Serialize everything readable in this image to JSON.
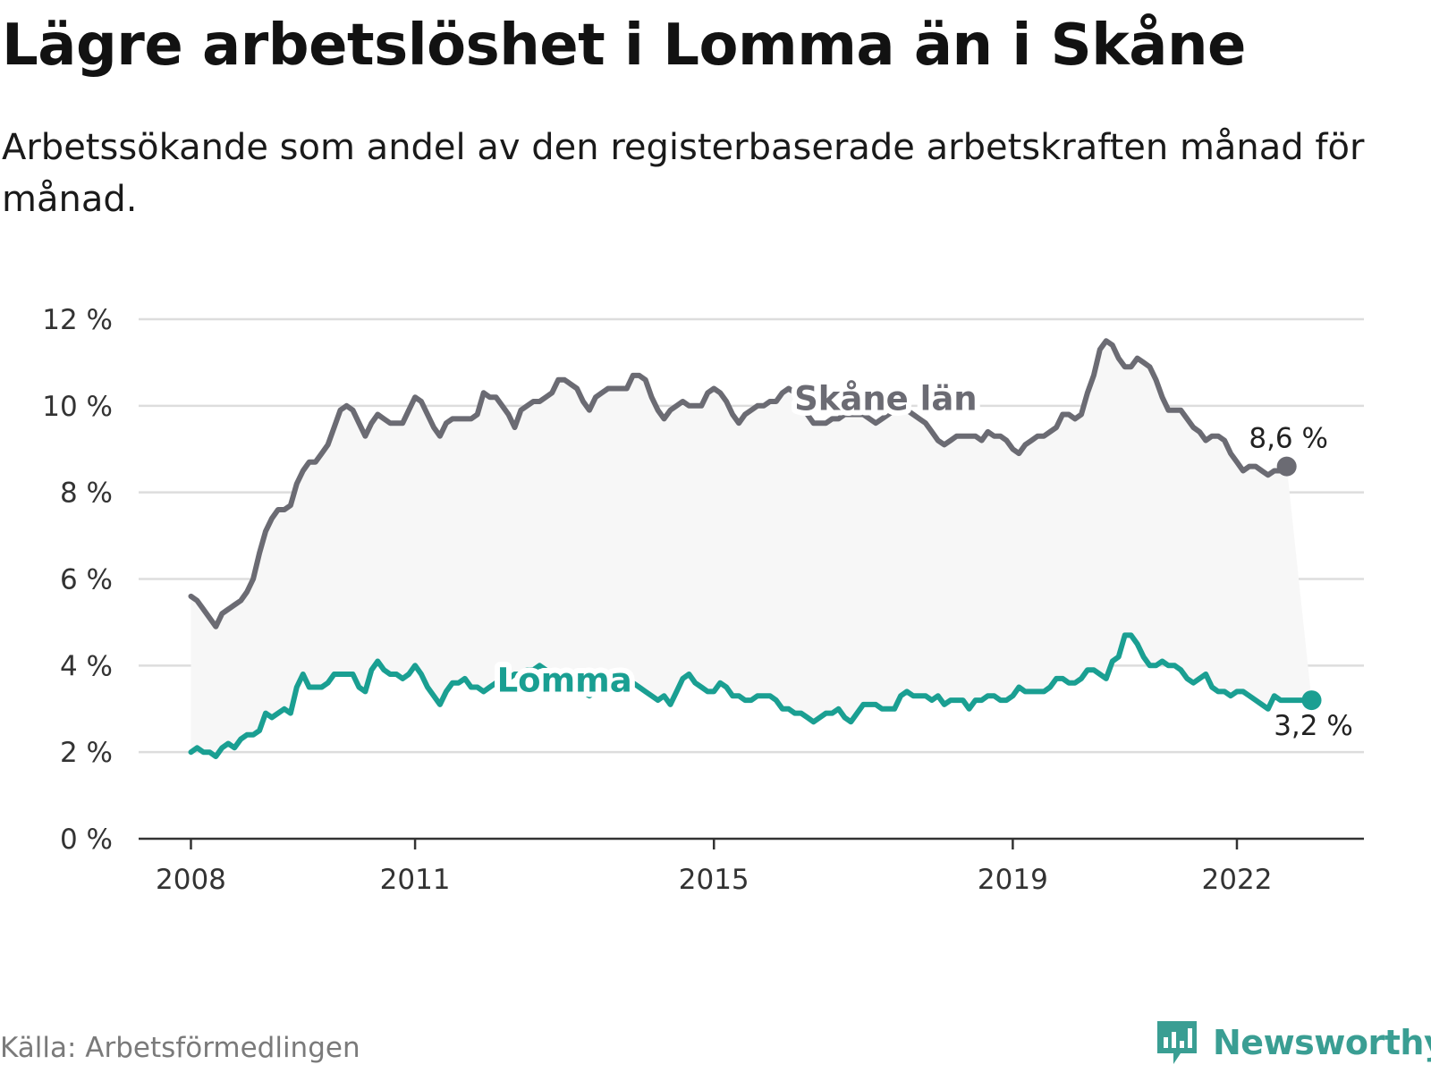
{
  "title": "Lägre arbetslöshet i Lomma än i Skåne",
  "subtitle": "Arbetssökande som andel av den registerbaserade arbetskraften månad för månad.",
  "source": "Källa: Arbetsförmedlingen",
  "brand": {
    "name": "Newsworthy",
    "icon": "newsworthy-logo-icon",
    "color": "#3a9e93"
  },
  "chart_data": {
    "type": "line",
    "title": "Lägre arbetslöshet i Lomma än i Skåne",
    "xlabel": "",
    "ylabel": "",
    "x_start": 2008.0,
    "x_step_months": 1,
    "xlim": [
      2007.3,
      2023.7
    ],
    "ylim": [
      0,
      12
    ],
    "yticks": [
      0,
      2,
      4,
      6,
      8,
      10,
      12
    ],
    "ytick_labels": [
      "0 %",
      "2 %",
      "4 %",
      "6 %",
      "8 %",
      "10 %",
      "12 %"
    ],
    "xticks": [
      2008,
      2011,
      2015,
      2019,
      2022
    ],
    "xtick_labels": [
      "2008",
      "2011",
      "2015",
      "2019",
      "2022"
    ],
    "grid": true,
    "series": [
      {
        "name": "Skåne län",
        "color": "#6b6b73",
        "end_label": "8,6 %",
        "values": [
          5.6,
          5.5,
          5.3,
          5.1,
          4.9,
          5.2,
          5.3,
          5.4,
          5.5,
          5.7,
          6.0,
          6.6,
          7.1,
          7.4,
          7.6,
          7.6,
          7.7,
          8.2,
          8.5,
          8.7,
          8.7,
          8.9,
          9.1,
          9.5,
          9.9,
          10.0,
          9.9,
          9.6,
          9.3,
          9.6,
          9.8,
          9.7,
          9.6,
          9.6,
          9.6,
          9.9,
          10.2,
          10.1,
          9.8,
          9.5,
          9.3,
          9.6,
          9.7,
          9.7,
          9.7,
          9.7,
          9.8,
          10.3,
          10.2,
          10.2,
          10.0,
          9.8,
          9.5,
          9.9,
          10.0,
          10.1,
          10.1,
          10.2,
          10.3,
          10.6,
          10.6,
          10.5,
          10.4,
          10.1,
          9.9,
          10.2,
          10.3,
          10.4,
          10.4,
          10.4,
          10.4,
          10.7,
          10.7,
          10.6,
          10.2,
          9.9,
          9.7,
          9.9,
          10.0,
          10.1,
          10.0,
          10.0,
          10.0,
          10.3,
          10.4,
          10.3,
          10.1,
          9.8,
          9.6,
          9.8,
          9.9,
          10.0,
          10.0,
          10.1,
          10.1,
          10.3,
          10.4,
          10.3,
          10.0,
          9.8,
          9.6,
          9.6,
          9.6,
          9.7,
          9.7,
          9.8,
          9.8,
          9.8,
          9.8,
          9.7,
          9.6,
          9.7,
          9.8,
          9.9,
          9.9,
          9.9,
          9.8,
          9.7,
          9.6,
          9.4,
          9.2,
          9.1,
          9.2,
          9.3,
          9.3,
          9.3,
          9.3,
          9.2,
          9.4,
          9.3,
          9.3,
          9.2,
          9.0,
          8.9,
          9.1,
          9.2,
          9.3,
          9.3,
          9.4,
          9.5,
          9.8,
          9.8,
          9.7,
          9.8,
          10.3,
          10.7,
          11.3,
          11.5,
          11.4,
          11.1,
          10.9,
          10.9,
          11.1,
          11.0,
          10.9,
          10.6,
          10.2,
          9.9,
          9.9,
          9.9,
          9.7,
          9.5,
          9.4,
          9.2,
          9.3,
          9.3,
          9.2,
          8.9,
          8.7,
          8.5,
          8.6,
          8.6,
          8.5,
          8.4,
          8.5,
          8.5,
          8.6
        ]
      },
      {
        "name": "Lomma",
        "color": "#1a9f92",
        "end_label": "3,2 %",
        "values": [
          2.0,
          2.1,
          2.0,
          2.0,
          1.9,
          2.1,
          2.2,
          2.1,
          2.3,
          2.4,
          2.4,
          2.5,
          2.9,
          2.8,
          2.9,
          3.0,
          2.9,
          3.5,
          3.8,
          3.5,
          3.5,
          3.5,
          3.6,
          3.8,
          3.8,
          3.8,
          3.8,
          3.5,
          3.4,
          3.9,
          4.1,
          3.9,
          3.8,
          3.8,
          3.7,
          3.8,
          4.0,
          3.8,
          3.5,
          3.3,
          3.1,
          3.4,
          3.6,
          3.6,
          3.7,
          3.5,
          3.5,
          3.4,
          3.5,
          3.6,
          3.6,
          3.7,
          3.8,
          3.8,
          3.9,
          3.9,
          4.0,
          3.9,
          3.8,
          3.7,
          3.6,
          3.5,
          3.5,
          3.4,
          3.3,
          3.4,
          3.5,
          3.5,
          3.6,
          3.6,
          3.6,
          3.6,
          3.5,
          3.4,
          3.3,
          3.2,
          3.3,
          3.1,
          3.4,
          3.7,
          3.8,
          3.6,
          3.5,
          3.4,
          3.4,
          3.6,
          3.5,
          3.3,
          3.3,
          3.2,
          3.2,
          3.3,
          3.3,
          3.3,
          3.2,
          3.0,
          3.0,
          2.9,
          2.9,
          2.8,
          2.7,
          2.8,
          2.9,
          2.9,
          3.0,
          2.8,
          2.7,
          2.9,
          3.1,
          3.1,
          3.1,
          3.0,
          3.0,
          3.0,
          3.3,
          3.4,
          3.3,
          3.3,
          3.3,
          3.2,
          3.3,
          3.1,
          3.2,
          3.2,
          3.2,
          3.0,
          3.2,
          3.2,
          3.3,
          3.3,
          3.2,
          3.2,
          3.3,
          3.5,
          3.4,
          3.4,
          3.4,
          3.4,
          3.5,
          3.7,
          3.7,
          3.6,
          3.6,
          3.7,
          3.9,
          3.9,
          3.8,
          3.7,
          4.1,
          4.2,
          4.7,
          4.7,
          4.5,
          4.2,
          4.0,
          4.0,
          4.1,
          4.0,
          4.0,
          3.9,
          3.7,
          3.6,
          3.7,
          3.8,
          3.5,
          3.4,
          3.4,
          3.3,
          3.4,
          3.4,
          3.3,
          3.2,
          3.1,
          3.0,
          3.3,
          3.2,
          3.2,
          3.2,
          3.2,
          3.2,
          3.2
        ]
      }
    ]
  }
}
